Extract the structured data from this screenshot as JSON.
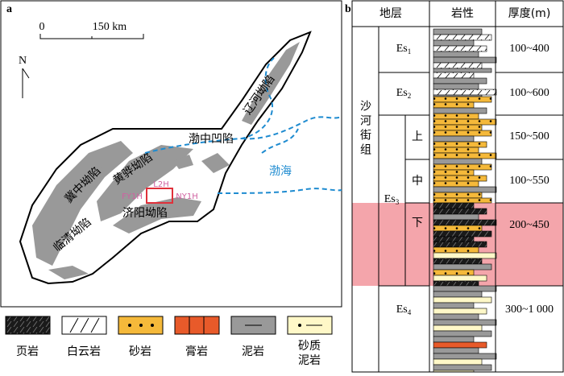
{
  "map": {
    "panel": "a",
    "scale_start": "0",
    "scale_end": "150 km",
    "north": "N",
    "regions": [
      "辽河坳陷",
      "渤中凹陷",
      "渤海",
      "黄骅坳陷",
      "冀中坳陷",
      "济阳坳陷",
      "临清坳陷"
    ],
    "wells": [
      "L2H",
      "FY1H",
      "NY1H"
    ]
  },
  "legend": [
    "页岩",
    "白云岩",
    "砂岩",
    "膏岩",
    "泥岩",
    [
      "砂质",
      "泥岩"
    ]
  ],
  "column": {
    "panel": "b",
    "headers": [
      "地层",
      "岩性",
      "厚度(m)"
    ],
    "formation": "沙河街组",
    "strata": [
      {
        "base": "Es",
        "sub": "1",
        "thickness": "100~400"
      },
      {
        "base": "Es",
        "sub": "2",
        "thickness": "100~600"
      },
      {
        "base": "Es",
        "sub": "3",
        "parts": [
          {
            "name": "上",
            "thickness": "150~500"
          },
          {
            "name": "中",
            "thickness": "100~550"
          },
          {
            "name": "下",
            "thickness": "200~450"
          }
        ]
      },
      {
        "base": "Es",
        "sub": "4",
        "thickness": "300~1 000"
      }
    ]
  }
}
